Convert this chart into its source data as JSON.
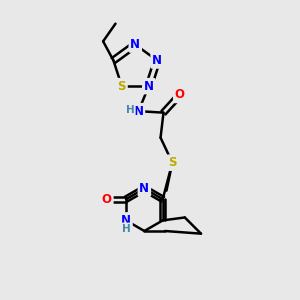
{
  "bg_color": "#e8e8e8",
  "bond_color": "#000000",
  "bond_width": 1.8,
  "atom_colors": {
    "N": "#0000FF",
    "S": "#BBAA00",
    "O": "#FF0000",
    "H": "#4488AA",
    "C": "#000000"
  },
  "font_size": 8.5,
  "fig_size": [
    3.0,
    3.0
  ],
  "dpi": 100
}
